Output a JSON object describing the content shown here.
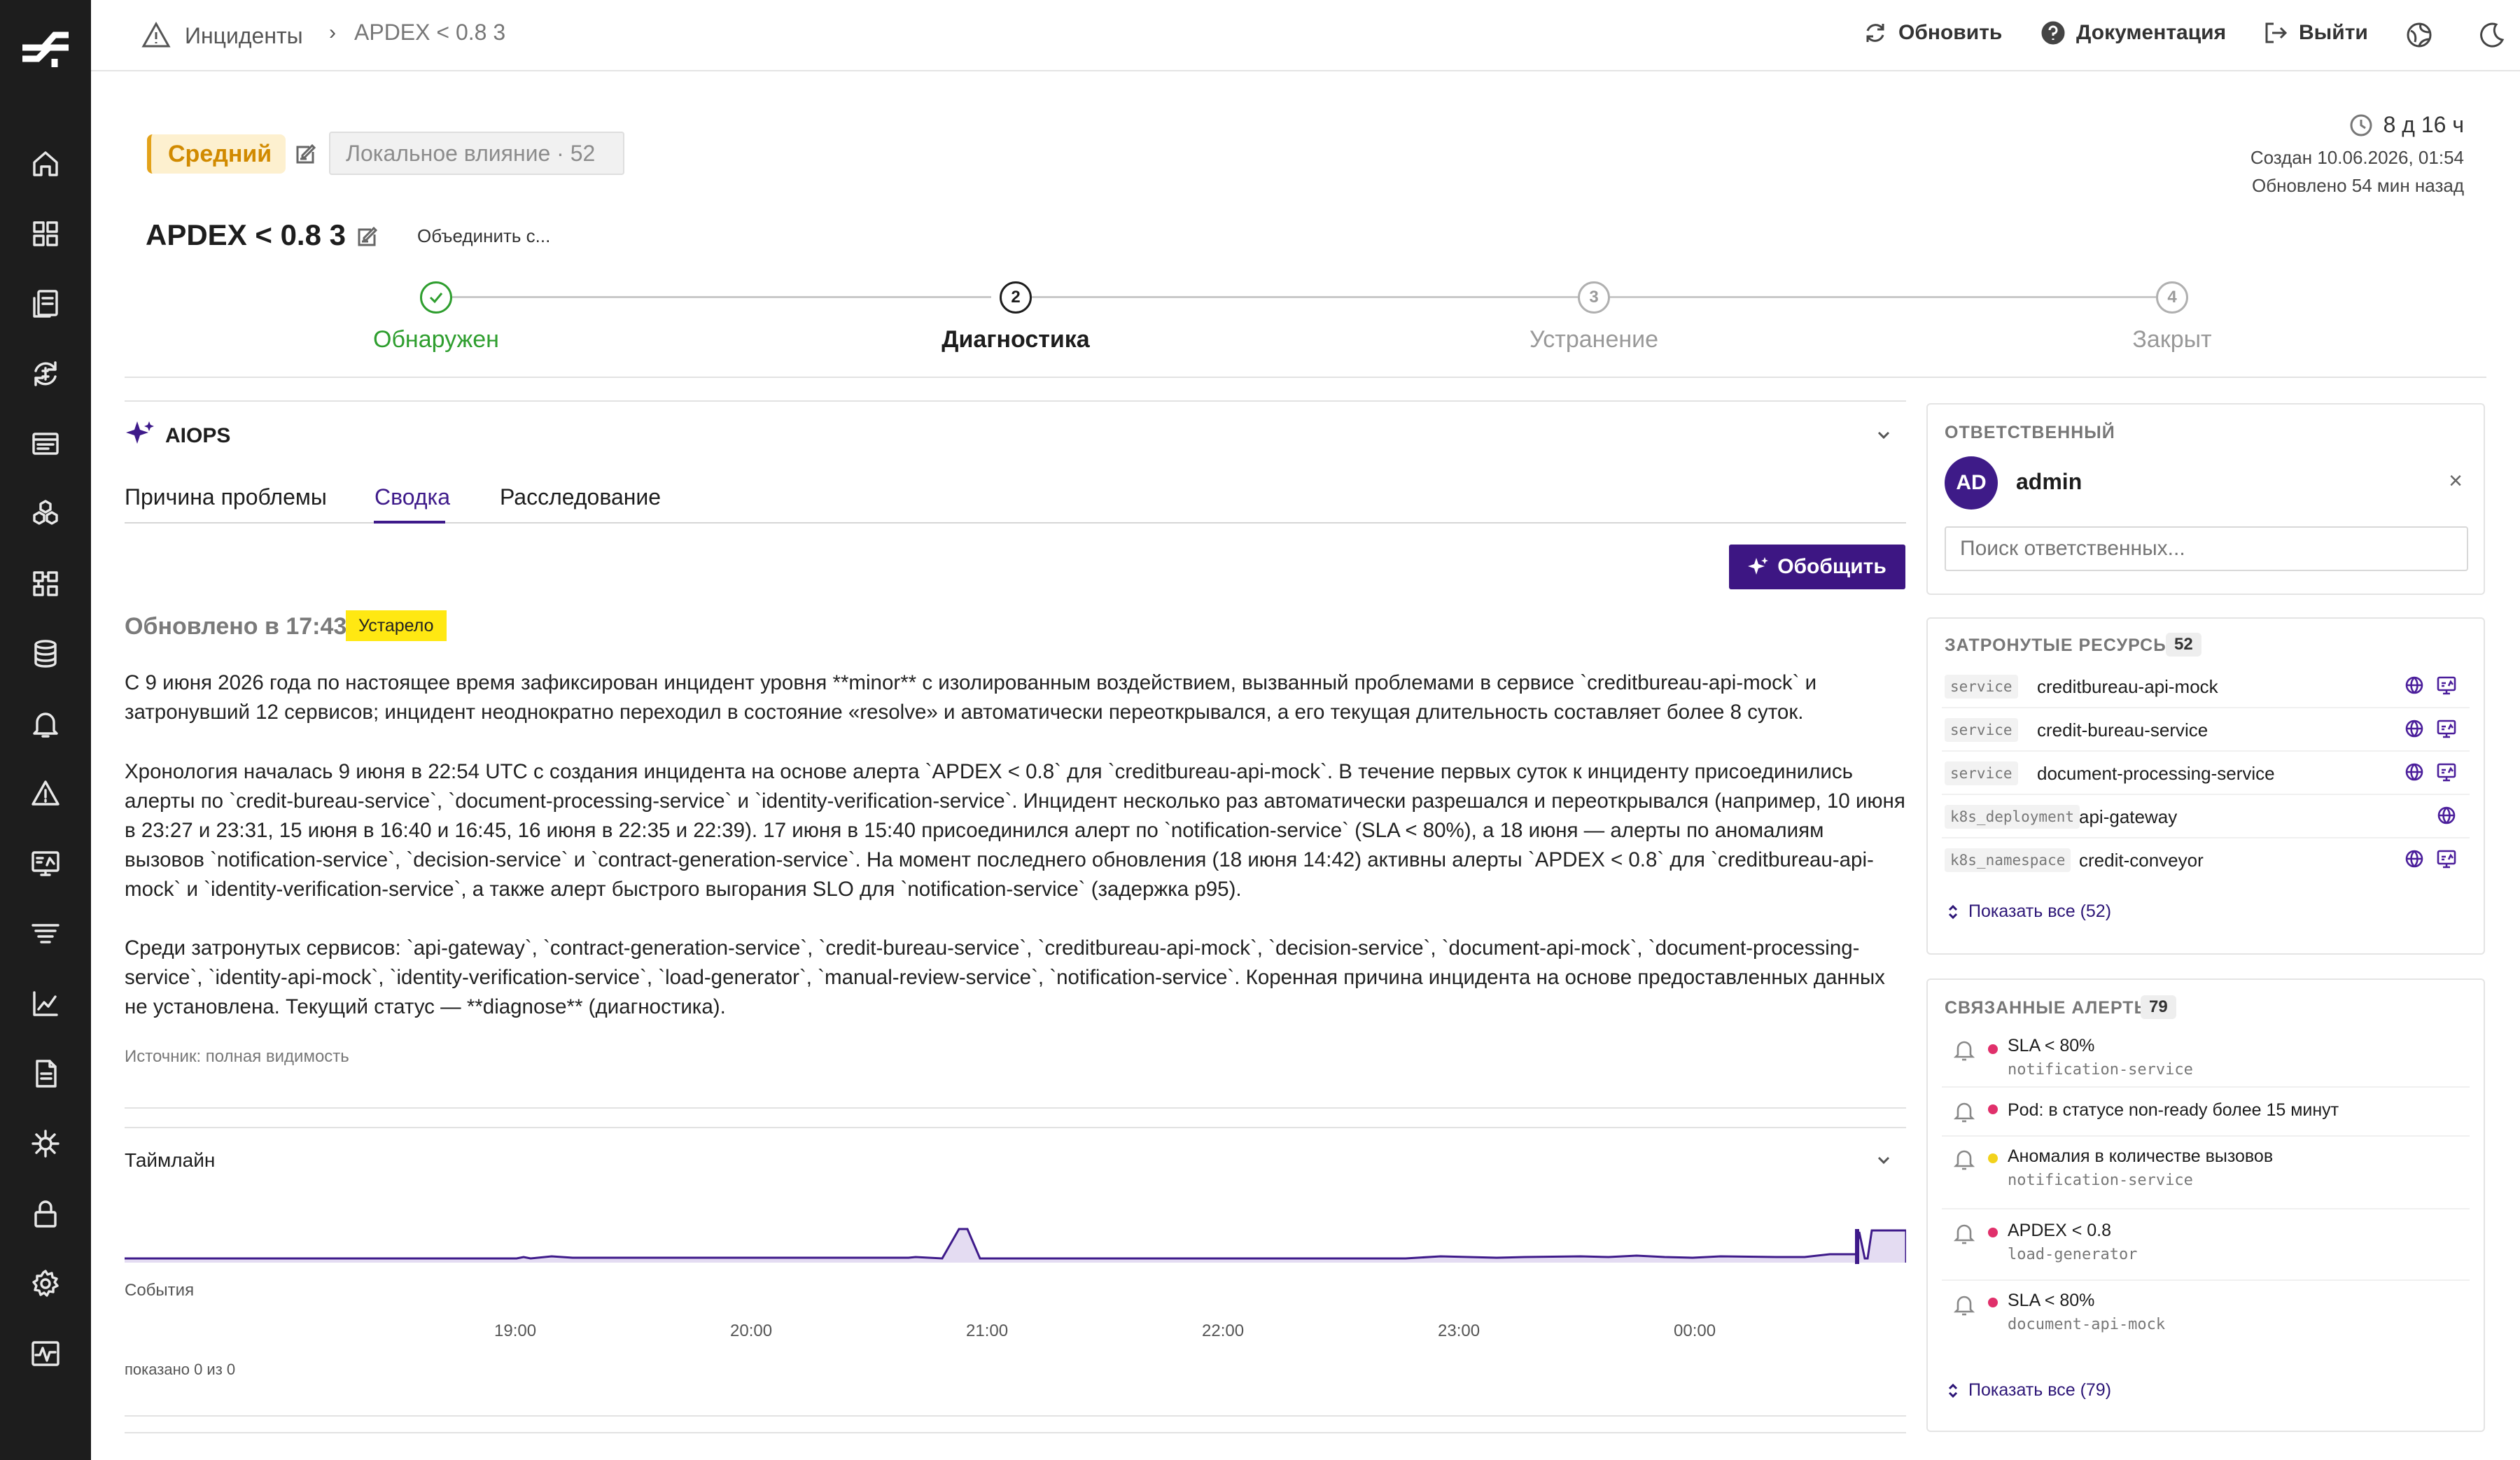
{
  "breadcrumb": {
    "section": "Инциденты",
    "separator": "›",
    "current": "APDEX < 0.8 3"
  },
  "toolbar": {
    "refresh": "Обновить",
    "docs": "Документация",
    "logout": "Выйти"
  },
  "sidebar": {
    "icons": [
      "home-icon",
      "dashboard-icon",
      "services-icon",
      "sync-icon",
      "logs-icon",
      "hexagons-icon",
      "apps-icon",
      "database-icon",
      "bell-icon",
      "warning-icon",
      "monitor-icon",
      "stack-icon",
      "chart-icon",
      "document-icon",
      "network-icon",
      "lock-icon",
      "settings-icon",
      "activity-icon"
    ]
  },
  "incident": {
    "severity": "Средний",
    "impact": "Локальное влияние · 52",
    "title": "APDEX < 0.8 3",
    "merge": "Объединить с...",
    "duration": "8 д 16 ч",
    "created": "Создан 10.06.2026, 01:54",
    "updated": "Обновлено 54 мин назад"
  },
  "steps": [
    {
      "num": "1",
      "label": "Обнаружен",
      "state": "done"
    },
    {
      "num": "2",
      "label": "Диагностика",
      "state": "active"
    },
    {
      "num": "3",
      "label": "Устранение",
      "state": "pending"
    },
    {
      "num": "4",
      "label": "Закрыт",
      "state": "pending"
    }
  ],
  "aiops": {
    "title": "AIOPS",
    "tabs": [
      "Причина проблемы",
      "Сводка",
      "Расследование"
    ],
    "active_tab": "Сводка",
    "generate": "Обобщить",
    "updated": "Обновлено в 17:43",
    "stale": "Устарело",
    "paragraphs": [
      "С 9 июня 2026 года по настоящее время зафиксирован инцидент уровня **minor** с изолированным воздействием, вызванный проблемами в сервисе `creditbureau-api-mock` и затронувший 12 сервисов; инцидент неоднократно переходил в состояние «resolve» и автоматически переоткрывался, а его текущая длительность составляет более 8 суток.",
      "Хронология началась 9 июня в 22:54 UTC с создания инцидента на основе алерта `APDEX < 0.8` для `creditbureau-api-mock`. В течение первых суток к инциденту присоединились алерты по `credit-bureau-service`, `document-processing-service` и `identity-verification-service`. Инцидент несколько раз автоматически разрешался и переоткрывался (например, 10 июня в 23:27 и 23:31, 15 июня в 16:40 и 16:45, 16 июня в 22:35 и 22:39). 17 июня в 15:40 присоединился алерт по `notification-service` (SLA < 80%), а 18 июня — алерты по аномалиям вызовов `notification-service`, `decision-service` и `contract-generation-service`. На момент последнего обновления (18 июня 14:42) активны алерты `APDEX < 0.8` для `creditbureau-api-mock` и `identity-verification-service`, а также алерт быстрого выгорания SLO для `notification-service` (задержка p95).",
      "Среди затронутых сервисов: `api-gateway`, `contract-generation-service`, `credit-bureau-service`, `creditbureau-api-mock`, `decision-service`, `document-api-mock`, `document-processing-service`, `identity-api-mock`, `identity-verification-service`, `load-generator`, `manual-review-service`, `notification-service`. Коренная причина инцидента на основе предоставленных данных не установлена. Текущий статус — **diagnose** (диагностика)."
    ],
    "source": "Источник: полная видимость"
  },
  "timeline": {
    "title": "Таймлайн",
    "events_label": "События",
    "ticks": [
      "19:00",
      "20:00",
      "21:00",
      "22:00",
      "23:00",
      "00:00"
    ],
    "shown": "показано 0 из 0"
  },
  "owner": {
    "heading": "ОТВЕТСТВЕННЫЙ",
    "initials": "AD",
    "name": "admin",
    "close": "×",
    "search_placeholder": "Поиск ответственных..."
  },
  "resources": {
    "heading": "ЗАТРОНУТЫЕ РЕСУРСЫ",
    "count": "52",
    "items": [
      {
        "type": "service",
        "name": "creditbureau-api-mock"
      },
      {
        "type": "service",
        "name": "credit-bureau-service"
      },
      {
        "type": "service",
        "name": "document-processing-service"
      },
      {
        "type": "k8s_deployment",
        "name": "api-gateway"
      },
      {
        "type": "k8s_namespace",
        "name": "credit-conveyor"
      }
    ],
    "show_all": "Показать все (52)"
  },
  "alerts": {
    "heading": "СВЯЗАННЫЕ АЛЕРТЫ",
    "count": "79",
    "items": [
      {
        "name": "SLA < 80%",
        "service": "notification-service",
        "color": "#e0306b"
      },
      {
        "name": "Pod: в статусе non-ready более 15 минут",
        "service": "",
        "color": "#e0306b"
      },
      {
        "name": "Аномалия в количестве вызовов",
        "service": "notification-service",
        "color": "#f2d21c"
      },
      {
        "name": "APDEX < 0.8",
        "service": "load-generator",
        "color": "#e0306b"
      },
      {
        "name": "SLA < 80%",
        "service": "document-api-mock",
        "color": "#e0306b"
      }
    ],
    "show_all": "Показать все (79)"
  },
  "colors": {
    "brand": "#3d1683",
    "success": "#2e9e2e",
    "warning": "#e3a21a",
    "critical": "#e0306b"
  }
}
